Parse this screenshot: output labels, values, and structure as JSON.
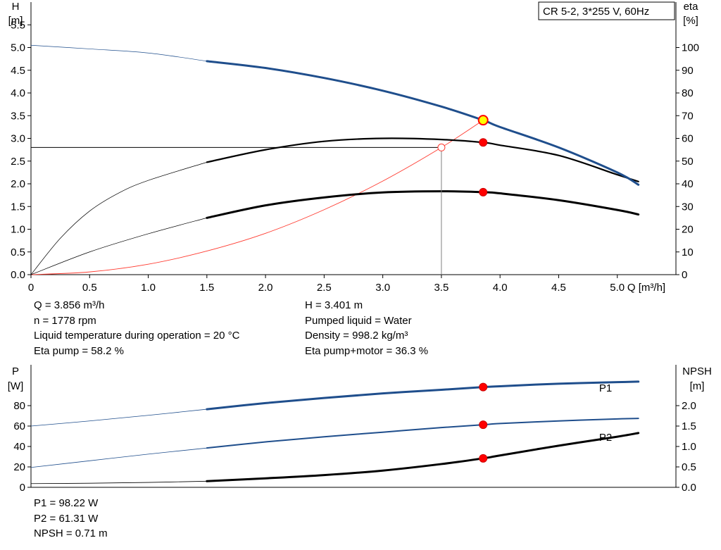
{
  "chart_data": [
    {
      "type": "line",
      "title": "CR 5-2, 3*255 V, 60Hz",
      "xlabel": "Q [m³/h]",
      "ylabel_left": [
        "H",
        "[m]"
      ],
      "ylabel_right": [
        "eta",
        "[%]"
      ],
      "xlim": [
        0,
        5.5
      ],
      "ylim_left": [
        0,
        6.0
      ],
      "ylim_right": [
        0,
        120
      ],
      "x_ticks": [
        "0",
        "0.5",
        "1.0",
        "1.5",
        "2.0",
        "2.5",
        "3.0",
        "3.5",
        "4.0",
        "4.5",
        "5.0"
      ],
      "y_left_ticks": [
        "0.0",
        "0.5",
        "1.0",
        "1.5",
        "2.0",
        "2.5",
        "3.0",
        "3.5",
        "4.0",
        "4.5",
        "5.0",
        "5.5"
      ],
      "y_right_ticks": [
        "0",
        "10",
        "20",
        "30",
        "40",
        "50",
        "60",
        "70",
        "80",
        "90",
        "100"
      ],
      "grid": true,
      "series": [
        {
          "key": "head",
          "axis": "left",
          "color": "#1f4e8c",
          "operating_range": [
            1.5,
            5.18
          ],
          "x": [
            0,
            0.5,
            1.0,
            1.5,
            2.0,
            2.5,
            3.0,
            3.5,
            3.856,
            4.0,
            4.5,
            5.0,
            5.18
          ],
          "y": [
            5.05,
            4.97,
            4.88,
            4.7,
            4.55,
            4.33,
            4.05,
            3.7,
            3.4,
            3.25,
            2.8,
            2.25,
            1.98
          ]
        },
        {
          "key": "eta-pump",
          "axis": "right",
          "color": "#000000",
          "operating_range": [
            1.5,
            5.18
          ],
          "x": [
            0,
            0.25,
            0.5,
            0.75,
            1.0,
            1.5,
            2.0,
            2.5,
            3.0,
            3.5,
            3.856,
            4.0,
            4.5,
            5.0,
            5.18
          ],
          "y": [
            0,
            16,
            28,
            36,
            41.5,
            49.5,
            55,
            58.7,
            60,
            59.5,
            58.2,
            57,
            52.5,
            44,
            41
          ]
        },
        {
          "key": "eta-pump-motor",
          "axis": "right",
          "color": "#000000",
          "operating_range": [
            1.5,
            5.18
          ],
          "x": [
            0,
            0.5,
            1.0,
            1.5,
            2.0,
            2.5,
            3.0,
            3.5,
            3.856,
            4.0,
            4.5,
            5.0,
            5.18
          ],
          "y": [
            0,
            10,
            18,
            25,
            30.5,
            34,
            36.2,
            36.7,
            36.3,
            35.8,
            32.8,
            28.5,
            26.5
          ]
        },
        {
          "key": "system-curve",
          "axis": "left",
          "color": "#ff3b30",
          "x": [
            0,
            0.5,
            1.0,
            1.5,
            2.0,
            2.5,
            3.0,
            3.5,
            3.856
          ],
          "y": [
            0,
            0.06,
            0.23,
            0.52,
            0.91,
            1.43,
            2.06,
            2.8,
            3.4
          ]
        }
      ],
      "operating_point": {
        "Q": 3.856,
        "H": 3.401,
        "eta_pump": 58.2,
        "eta_pump_motor": 36.3
      },
      "reference_point": {
        "Q": 3.5,
        "H": 2.8
      }
    },
    {
      "type": "line",
      "ylabel_left": [
        "P",
        "[W]"
      ],
      "ylabel_right": [
        "NPSH",
        "[m]"
      ],
      "xlim": [
        0,
        5.5
      ],
      "ylim_left": [
        0,
        120
      ],
      "ylim_right": [
        0,
        3.0
      ],
      "y_left_ticks": [
        "0",
        "20",
        "40",
        "60",
        "80"
      ],
      "y_right_ticks": [
        "0.0",
        "0.5",
        "1.0",
        "1.5",
        "2.0"
      ],
      "grid": true,
      "series": [
        {
          "name": "P1",
          "key": "p1",
          "axis": "left",
          "color": "#1f4e8c",
          "operating_range": [
            1.5,
            5.18
          ],
          "x": [
            0,
            0.5,
            1.0,
            1.5,
            2.0,
            2.5,
            3.0,
            3.5,
            3.856,
            4.0,
            4.5,
            5.0,
            5.18
          ],
          "y": [
            60,
            65,
            70.5,
            76.5,
            82.5,
            87.5,
            92,
            95.5,
            98.2,
            99,
            101.5,
            103,
            103.5
          ]
        },
        {
          "name": "P2",
          "key": "p2",
          "axis": "left",
          "color": "#1f4e8c",
          "operating_range": [
            1.5,
            5.18
          ],
          "x": [
            0,
            0.5,
            1.0,
            1.5,
            2.0,
            2.5,
            3.0,
            3.5,
            3.856,
            4.0,
            4.5,
            5.0,
            5.18
          ],
          "y": [
            19.5,
            26,
            32.5,
            38.5,
            44.5,
            49.5,
            54,
            58.5,
            61.3,
            62.5,
            65,
            67,
            67.5
          ]
        },
        {
          "key": "npsh",
          "axis": "right",
          "color": "#000000",
          "operating_range": [
            1.5,
            5.18
          ],
          "x": [
            0,
            0.5,
            1.0,
            1.5,
            2.0,
            2.5,
            3.0,
            3.5,
            3.856,
            4.0,
            4.5,
            5.0,
            5.18
          ],
          "y": [
            0.09,
            0.1,
            0.12,
            0.15,
            0.22,
            0.3,
            0.41,
            0.57,
            0.71,
            0.78,
            1.02,
            1.24,
            1.33
          ]
        }
      ],
      "operating_point": {
        "Q": 3.856,
        "P1": 98.22,
        "P2": 61.31,
        "NPSH": 0.71
      }
    }
  ],
  "info_top": {
    "q": "Q = 3.856 m³/h",
    "n": "n = 1778 rpm",
    "liquid_temp": "Liquid temperature during operation = 20 °C",
    "eta_pump": "Eta pump = 58.2 %",
    "h": "H = 3.401 m",
    "pumped_liquid": "Pumped liquid = Water",
    "density": "Density = 998.2 kg/m³",
    "eta_pump_motor": "Eta pump+motor = 36.3 %"
  },
  "info_bottom": {
    "p1": "P1 = 98.22 W",
    "p2": "P2 = 61.31 W",
    "npsh": "NPSH = 0.71 m"
  },
  "colors": {
    "grid": "#c8c8c8",
    "head": "#1f4e8c",
    "system": "#ff3b30",
    "marker_fill": "#ff0000",
    "op_marker_fill": "#ffff00"
  }
}
